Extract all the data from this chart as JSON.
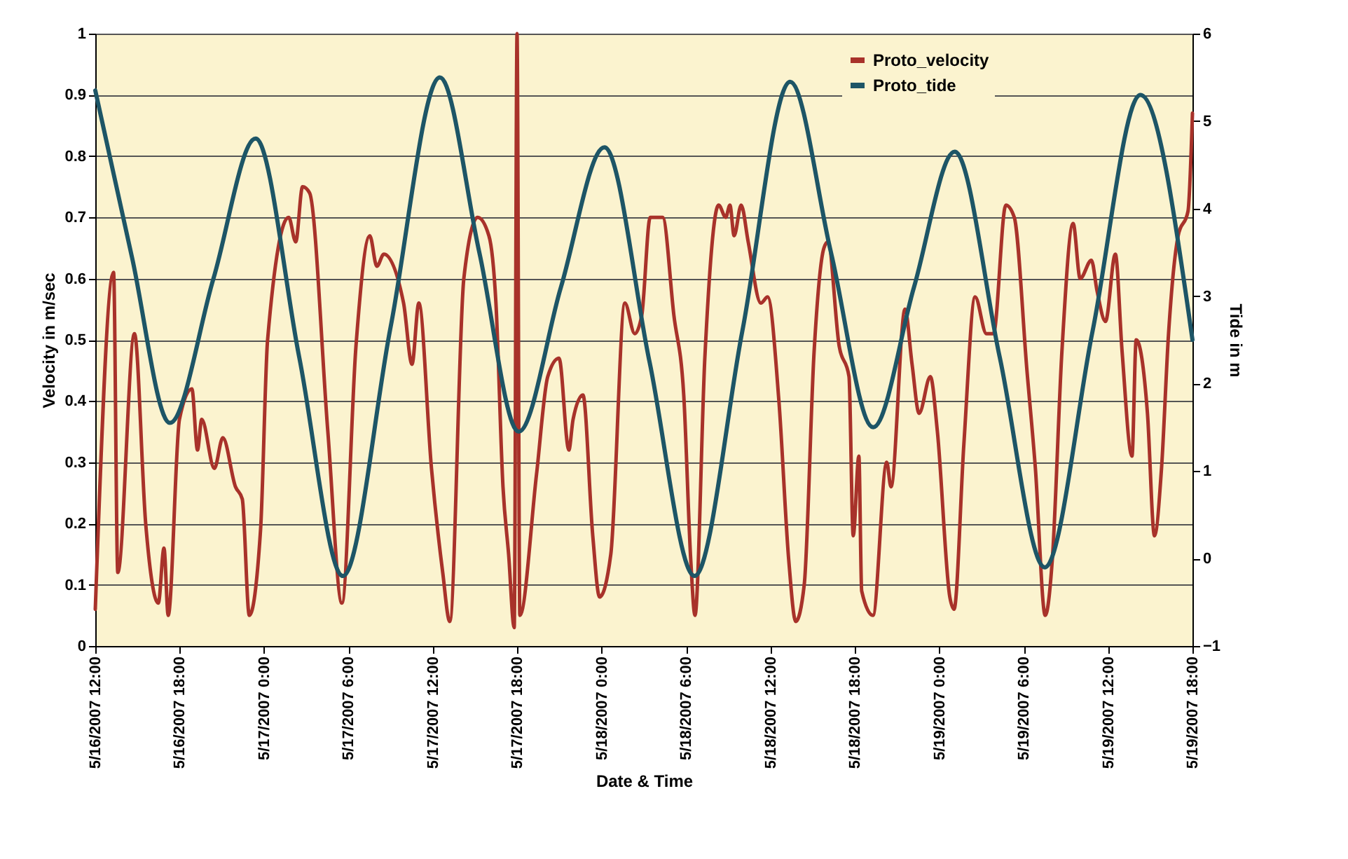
{
  "chart_data": {
    "type": "line",
    "xlabel": "Date & Time",
    "ylabel": "Velocity in m/sec",
    "y2label": "Tide in m",
    "xlim": [
      "2007-05-16T12:00",
      "2007-05-19T18:00"
    ],
    "xticks": [
      {
        "value": "2007-05-16T12:00",
        "label": "5/16/2007 12:00"
      },
      {
        "value": "2007-05-16T18:00",
        "label": "5/16/2007 18:00"
      },
      {
        "value": "2007-05-17T00:00",
        "label": "5/17/2007 0:00"
      },
      {
        "value": "2007-05-17T06:00",
        "label": "5/17/2007 6:00"
      },
      {
        "value": "2007-05-17T12:00",
        "label": "5/17/2007 12:00"
      },
      {
        "value": "2007-05-17T18:00",
        "label": "5/17/2007 18:00"
      },
      {
        "value": "2007-05-18T00:00",
        "label": "5/18/2007 0:00"
      },
      {
        "value": "2007-05-18T06:00",
        "label": "5/18/2007 6:00"
      },
      {
        "value": "2007-05-18T12:00",
        "label": "5/18/2007 12:00"
      },
      {
        "value": "2007-05-18T18:00",
        "label": "5/18/2007 18:00"
      },
      {
        "value": "2007-05-19T00:00",
        "label": "5/19/2007 0:00"
      },
      {
        "value": "2007-05-19T06:00",
        "label": "5/19/2007 6:00"
      },
      {
        "value": "2007-05-19T12:00",
        "label": "5/19/2007 12:00"
      },
      {
        "value": "2007-05-19T18:00",
        "label": "5/19/2007 18:00"
      }
    ],
    "ylim": [
      0,
      1
    ],
    "yticks": [
      0,
      0.1,
      0.2,
      0.3,
      0.4,
      0.5,
      0.6,
      0.7,
      0.8,
      0.9,
      1
    ],
    "y2lim": [
      -1,
      6
    ],
    "y2ticks": [
      -1,
      0,
      1,
      2,
      3,
      4,
      5,
      6
    ],
    "grid": "y",
    "legend": "top right",
    "series": [
      {
        "name": "Proto_velocity",
        "color": "#a8322a",
        "x": [
          "2007-05-16T12:00",
          "2007-05-16T13:18",
          "2007-05-16T13:36",
          "2007-05-16T14:47",
          "2007-05-16T15:35",
          "2007-05-16T16:29",
          "2007-05-16T16:53",
          "2007-05-16T17:11",
          "2007-05-16T17:59",
          "2007-05-16T18:52",
          "2007-05-16T19:16",
          "2007-05-16T19:34",
          "2007-05-16T20:28",
          "2007-05-16T21:04",
          "2007-05-16T21:58",
          "2007-05-16T22:27",
          "2007-05-16T22:57",
          "2007-05-16T23:45",
          "2007-05-17T00:15",
          "2007-05-17T01:45",
          "2007-05-17T02:15",
          "2007-05-17T02:44",
          "2007-05-17T03:14",
          "2007-05-17T04:32",
          "2007-05-17T05:32",
          "2007-05-17T06:32",
          "2007-05-17T07:31",
          "2007-05-17T08:01",
          "2007-05-17T08:31",
          "2007-05-17T09:55",
          "2007-05-17T10:31",
          "2007-05-17T11:00",
          "2007-05-17T11:54",
          "2007-05-17T12:42",
          "2007-05-17T13:12",
          "2007-05-17T14:12",
          "2007-05-17T15:11",
          "2007-05-17T15:59",
          "2007-05-17T16:29",
          "2007-05-17T16:59",
          "2007-05-17T17:23",
          "2007-05-17T17:47",
          "2007-05-17T17:59",
          "2007-05-17T18:11",
          "2007-05-17T19:22",
          "2007-05-17T20:10",
          "2007-05-17T20:58",
          "2007-05-17T21:40",
          "2007-05-17T21:58",
          "2007-05-17T22:40",
          "2007-05-17T23:22",
          "2007-05-17T23:51",
          "2007-05-18T00:39",
          "2007-05-18T01:39",
          "2007-05-18T02:21",
          "2007-05-18T02:51",
          "2007-05-18T03:27",
          "2007-05-18T04:20",
          "2007-05-18T05:08",
          "2007-05-18T05:50",
          "2007-05-18T06:20",
          "2007-05-18T06:38",
          "2007-05-18T07:20",
          "2007-05-18T08:19",
          "2007-05-18T08:49",
          "2007-05-18T09:07",
          "2007-05-18T09:25",
          "2007-05-18T09:55",
          "2007-05-18T10:25",
          "2007-05-18T11:19",
          "2007-05-18T11:48",
          "2007-05-18T12:36",
          "2007-05-18T13:18",
          "2007-05-18T13:48",
          "2007-05-18T14:24",
          "2007-05-18T15:06",
          "2007-05-18T15:48",
          "2007-05-18T16:05",
          "2007-05-18T16:53",
          "2007-05-18T17:35",
          "2007-05-18T17:53",
          "2007-05-18T18:17",
          "2007-05-18T18:29",
          "2007-05-18T19:17",
          "2007-05-18T20:16",
          "2007-05-18T20:34",
          "2007-05-18T21:34",
          "2007-05-18T22:04",
          "2007-05-18T22:34",
          "2007-05-18T23:22",
          "2007-05-18T23:52",
          "2007-05-19T00:45",
          "2007-05-19T01:03",
          "2007-05-19T01:45",
          "2007-05-19T02:33",
          "2007-05-19T03:21",
          "2007-05-19T03:51",
          "2007-05-19T04:44",
          "2007-05-19T05:20",
          "2007-05-19T06:14",
          "2007-05-19T06:50",
          "2007-05-19T07:32",
          "2007-05-19T08:02",
          "2007-05-19T08:43",
          "2007-05-19T09:31",
          "2007-05-19T10:01",
          "2007-05-19T10:49",
          "2007-05-19T11:13",
          "2007-05-19T11:49",
          "2007-05-19T12:31",
          "2007-05-19T13:00",
          "2007-05-19T13:42",
          "2007-05-19T14:00",
          "2007-05-19T14:48",
          "2007-05-19T15:18",
          "2007-05-19T15:48",
          "2007-05-19T16:18",
          "2007-05-19T16:59",
          "2007-05-19T17:41",
          "2007-05-19T18:00"
        ],
        "values": [
          0.06,
          0.61,
          0.12,
          0.51,
          0.2,
          0.07,
          0.16,
          0.05,
          0.37,
          0.42,
          0.32,
          0.37,
          0.29,
          0.34,
          0.26,
          0.24,
          0.05,
          0.19,
          0.5,
          0.7,
          0.66,
          0.75,
          0.74,
          0.35,
          0.07,
          0.49,
          0.67,
          0.62,
          0.64,
          0.56,
          0.46,
          0.56,
          0.29,
          0.12,
          0.04,
          0.6,
          0.7,
          0.67,
          0.56,
          0.26,
          0.15,
          0.03,
          1.0,
          0.05,
          0.28,
          0.44,
          0.47,
          0.32,
          0.37,
          0.41,
          0.18,
          0.08,
          0.15,
          0.56,
          0.51,
          0.54,
          0.7,
          0.7,
          0.54,
          0.41,
          0.14,
          0.05,
          0.47,
          0.72,
          0.7,
          0.72,
          0.67,
          0.72,
          0.66,
          0.56,
          0.57,
          0.4,
          0.14,
          0.04,
          0.1,
          0.48,
          0.65,
          0.66,
          0.49,
          0.44,
          0.18,
          0.31,
          0.09,
          0.05,
          0.3,
          0.26,
          0.55,
          0.46,
          0.38,
          0.44,
          0.35,
          0.08,
          0.06,
          0.33,
          0.57,
          0.51,
          0.51,
          0.72,
          0.7,
          0.45,
          0.29,
          0.05,
          0.14,
          0.48,
          0.69,
          0.6,
          0.63,
          0.58,
          0.53,
          0.64,
          0.48,
          0.31,
          0.5,
          0.38,
          0.18,
          0.29,
          0.51,
          0.67,
          0.71,
          0.87
        ]
      },
      {
        "name": "Proto_tide",
        "color": "#1d5566",
        "axis": "y2",
        "x": [
          "2007-05-16T12:00",
          "2007-05-16T14:36",
          "2007-05-16T17:18",
          "2007-05-16T20:24",
          "2007-05-16T23:24",
          "2007-05-17T02:30",
          "2007-05-17T05:36",
          "2007-05-17T09:00",
          "2007-05-17T12:30",
          "2007-05-17T15:18",
          "2007-05-17T18:06",
          "2007-05-17T21:06",
          "2007-05-18T00:12",
          "2007-05-18T03:24",
          "2007-05-18T06:36",
          "2007-05-18T10:00",
          "2007-05-18T13:24",
          "2007-05-18T16:18",
          "2007-05-18T19:18",
          "2007-05-18T22:12",
          "2007-05-19T01:06",
          "2007-05-19T04:18",
          "2007-05-19T07:30",
          "2007-05-19T10:54",
          "2007-05-19T14:18",
          "2007-05-19T18:00"
        ],
        "values": [
          5.35,
          3.45,
          1.55,
          3.2,
          4.8,
          2.3,
          -0.2,
          2.65,
          5.5,
          3.5,
          1.45,
          3.1,
          4.7,
          2.25,
          -0.2,
          2.6,
          5.45,
          3.5,
          1.5,
          3.1,
          4.65,
          2.3,
          -0.1,
          2.6,
          5.3,
          2.5
        ]
      }
    ]
  }
}
